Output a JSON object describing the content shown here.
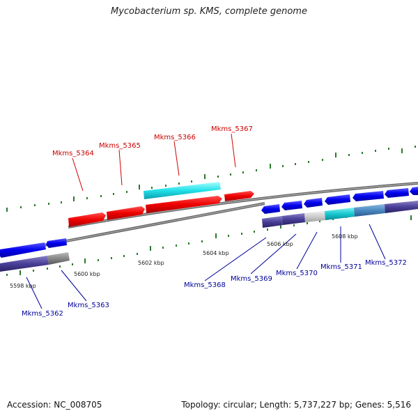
{
  "title": "Mycobacterium sp. KMS, complete genome",
  "footer": {
    "accession": "Accession: NC_008705",
    "summary": "Topology: circular; Length: 5,737,227 bp; Genes: 5,516"
  },
  "colors": {
    "forward_label": "#cc0000",
    "reverse_label": "#000099",
    "backbone": "#7a7a7a",
    "tick": "#2a7a2a"
  },
  "scale_labels": [
    "5598 kbp",
    "5600 kbp",
    "5602 kbp",
    "5604 kbp",
    "5606 kbp",
    "5608 kbp"
  ],
  "forward_gene_labels": [
    "Mkms_5364",
    "Mkms_5365",
    "Mkms_5366",
    "Mkms_5367"
  ],
  "reverse_gene_labels": [
    "Mkms_5362",
    "Mkms_5363",
    "Mkms_5368",
    "Mkms_5369",
    "Mkms_5370",
    "Mkms_5371",
    "Mkms_5372"
  ]
}
